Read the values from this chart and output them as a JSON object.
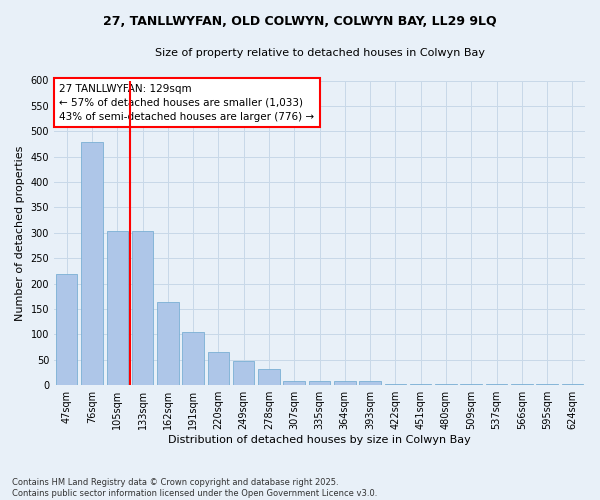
{
  "title": "27, TANLLWYFAN, OLD COLWYN, COLWYN BAY, LL29 9LQ",
  "subtitle": "Size of property relative to detached houses in Colwyn Bay",
  "xlabel": "Distribution of detached houses by size in Colwyn Bay",
  "ylabel": "Number of detached properties",
  "categories": [
    "47sqm",
    "76sqm",
    "105sqm",
    "133sqm",
    "162sqm",
    "191sqm",
    "220sqm",
    "249sqm",
    "278sqm",
    "307sqm",
    "335sqm",
    "364sqm",
    "393sqm",
    "422sqm",
    "451sqm",
    "480sqm",
    "509sqm",
    "537sqm",
    "566sqm",
    "595sqm",
    "624sqm"
  ],
  "values": [
    219,
    478,
    303,
    303,
    163,
    105,
    65,
    47,
    31,
    9,
    9,
    9,
    8,
    3,
    3,
    3,
    2,
    2,
    2,
    2,
    3
  ],
  "bar_color": "#aec6e8",
  "bar_edge_color": "#7aafd4",
  "grid_color": "#c8d8e8",
  "bg_color": "#e8f0f8",
  "vline_x": 2.5,
  "vline_color": "red",
  "annotation_text": "27 TANLLWYFAN: 129sqm\n← 57% of detached houses are smaller (1,033)\n43% of semi-detached houses are larger (776) →",
  "annotation_box_color": "white",
  "annotation_border_color": "red",
  "footer": "Contains HM Land Registry data © Crown copyright and database right 2025.\nContains public sector information licensed under the Open Government Licence v3.0.",
  "ylim": [
    0,
    600
  ],
  "yticks": [
    0,
    50,
    100,
    150,
    200,
    250,
    300,
    350,
    400,
    450,
    500,
    550,
    600
  ],
  "title_fontsize": 9,
  "subtitle_fontsize": 8,
  "axis_label_fontsize": 8,
  "tick_fontsize": 7,
  "annotation_fontsize": 7.5,
  "footer_fontsize": 6
}
